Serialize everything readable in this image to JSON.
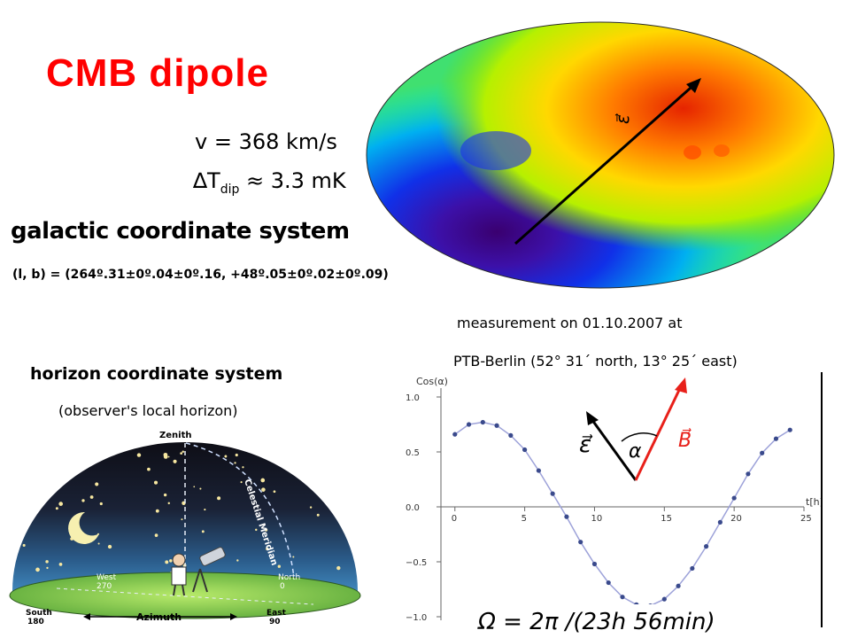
{
  "title": "CMB dipole",
  "velocity": "v = 368 km/s",
  "dt_dip": {
    "prefix": "∆T",
    "sub": "dip",
    "suffix": " ≈ 3.3 mK"
  },
  "galactic": {
    "heading": "galactic coordinate system",
    "coords": "(l, b) = (264º.31±0º.04±0º.16, +48º.05±0º.02±0º.09)"
  },
  "measurement": {
    "line1": "measurement on 01.10.2007 at",
    "line2": "PTB-Berlin (52° 31´ north, 13° 25´ east)"
  },
  "horizon": {
    "heading": "horizon coordinate system",
    "subtitle": "(observer's local horizon)",
    "labels": {
      "zenith": "Zenith",
      "meridian": "Celestial Meridian",
      "west": "West",
      "west_deg": "270",
      "north": "North",
      "north_deg": "0",
      "south": "South",
      "south_deg": "180",
      "east": "East",
      "east_deg": "90",
      "azimuth": "Azimuth"
    }
  },
  "map": {
    "vector_label": "ε⃗"
  },
  "vectors_inset": {
    "epsilon": "ε⃗",
    "alpha": "α",
    "b": "B⃗",
    "b_color": "#e8201a"
  },
  "formula": "Ω = 2π /(23h 56min)",
  "chart_data": {
    "type": "scatter",
    "ylabel": "Cos(α)",
    "xlabel": "t[h]",
    "xlim": [
      -1,
      25
    ],
    "ylim": [
      -1.0,
      1.0
    ],
    "x_ticks": [
      "0",
      "5",
      "10",
      "15",
      "20",
      "25"
    ],
    "y_ticks": [
      "1.0",
      "0.5",
      "0.0",
      "−0.5",
      "−1.0"
    ],
    "series": [
      {
        "x": [
          0,
          1,
          2,
          3,
          4,
          5,
          6,
          7,
          8,
          9,
          10,
          11,
          12,
          13,
          14,
          15,
          16,
          17,
          18,
          19,
          20,
          21,
          22,
          23,
          24
        ],
        "y": [
          0.66,
          0.75,
          0.77,
          0.74,
          0.65,
          0.52,
          0.33,
          0.12,
          -0.09,
          -0.32,
          -0.52,
          -0.69,
          -0.82,
          -0.89,
          -0.9,
          -0.84,
          -0.72,
          -0.56,
          -0.36,
          -0.14,
          0.08,
          0.3,
          0.49,
          0.62,
          0.7
        ],
        "point_color": "#3a4a8c",
        "line_color": "#9da2d9"
      }
    ]
  }
}
